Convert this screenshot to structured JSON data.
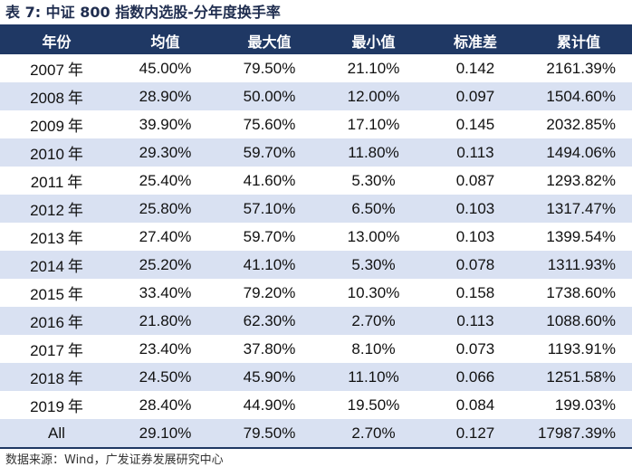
{
  "title": "表 7: 中证 800 指数内选股-分年度换手率",
  "table": {
    "headers": [
      "年份",
      "均值",
      "最大值",
      "最小值",
      "标准差",
      "累计值"
    ],
    "rows": [
      {
        "year": "2007",
        "unit": "年",
        "mean": "45.00%",
        "max": "79.50%",
        "min": "21.10%",
        "std": "0.142",
        "cum": "2161.39%"
      },
      {
        "year": "2008",
        "unit": "年",
        "mean": "28.90%",
        "max": "50.00%",
        "min": "12.00%",
        "std": "0.097",
        "cum": "1504.60%"
      },
      {
        "year": "2009",
        "unit": "年",
        "mean": "39.90%",
        "max": "75.60%",
        "min": "17.10%",
        "std": "0.145",
        "cum": "2032.85%"
      },
      {
        "year": "2010",
        "unit": "年",
        "mean": "29.30%",
        "max": "59.70%",
        "min": "11.80%",
        "std": "0.113",
        "cum": "1494.06%"
      },
      {
        "year": "2011",
        "unit": "年",
        "mean": "25.40%",
        "max": "41.60%",
        "min": "5.30%",
        "std": "0.087",
        "cum": "1293.82%"
      },
      {
        "year": "2012",
        "unit": "年",
        "mean": "25.80%",
        "max": "57.10%",
        "min": "6.50%",
        "std": "0.103",
        "cum": "1317.47%"
      },
      {
        "year": "2013",
        "unit": "年",
        "mean": "27.40%",
        "max": "59.70%",
        "min": "13.00%",
        "std": "0.103",
        "cum": "1399.54%"
      },
      {
        "year": "2014",
        "unit": "年",
        "mean": "25.20%",
        "max": "41.10%",
        "min": "5.30%",
        "std": "0.078",
        "cum": "1311.93%"
      },
      {
        "year": "2015",
        "unit": "年",
        "mean": "33.40%",
        "max": "79.20%",
        "min": "10.30%",
        "std": "0.158",
        "cum": "1738.60%"
      },
      {
        "year": "2016",
        "unit": "年",
        "mean": "21.80%",
        "max": "62.30%",
        "min": "2.70%",
        "std": "0.113",
        "cum": "1088.60%"
      },
      {
        "year": "2017",
        "unit": "年",
        "mean": "23.40%",
        "max": "37.80%",
        "min": "8.10%",
        "std": "0.073",
        "cum": "1193.91%"
      },
      {
        "year": "2018",
        "unit": "年",
        "mean": "24.50%",
        "max": "45.90%",
        "min": "11.10%",
        "std": "0.066",
        "cum": "1251.58%"
      },
      {
        "year": "2019",
        "unit": "年",
        "mean": "28.40%",
        "max": "44.90%",
        "min": "19.50%",
        "std": "0.084",
        "cum": "199.03%"
      },
      {
        "year": "All",
        "unit": "",
        "mean": "29.10%",
        "max": "79.50%",
        "min": "2.70%",
        "std": "0.127",
        "cum": "17987.39%"
      }
    ]
  },
  "source": "数据来源：Wind，广发证券发展研究中心",
  "colors": {
    "header_bg": "#1f3864",
    "stripe_bg": "#d9e1f2",
    "title_color": "#1f2d4f"
  }
}
